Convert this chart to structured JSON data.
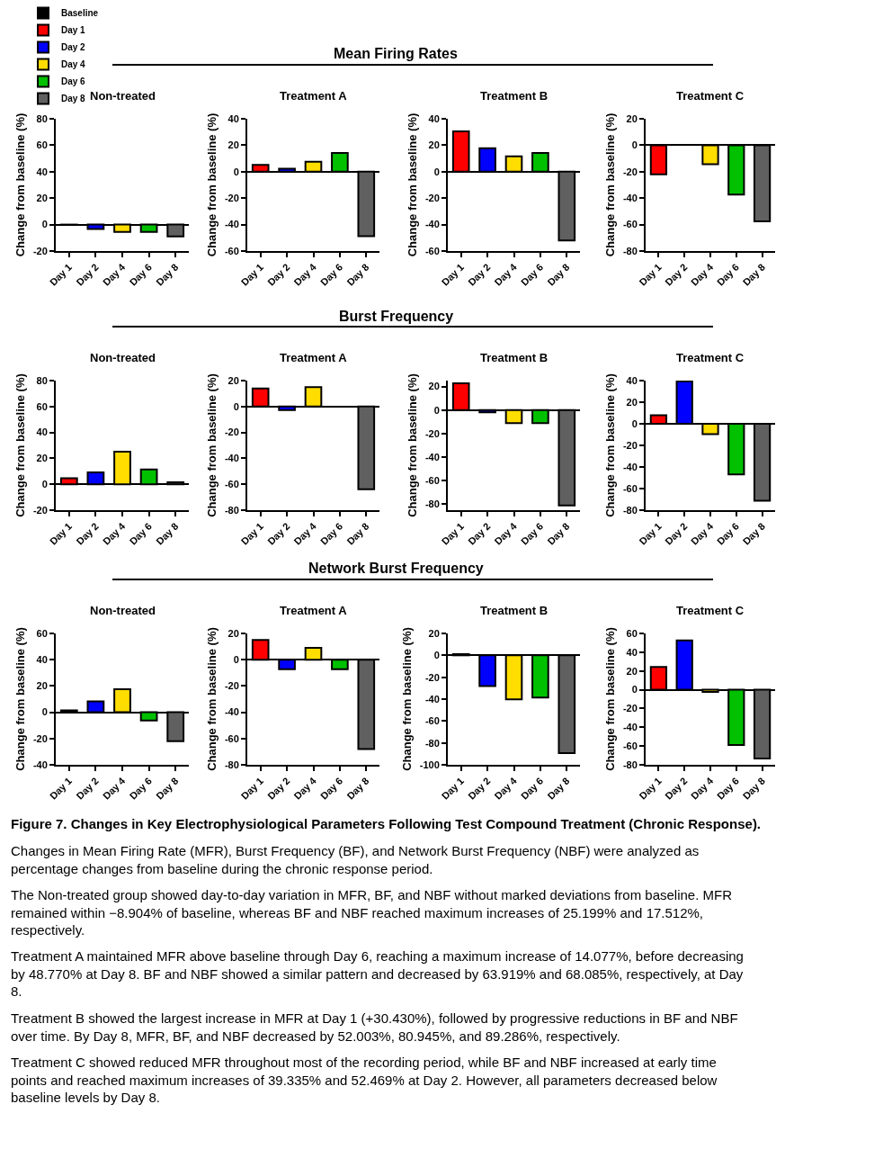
{
  "chart_data": [
    {
      "type": "bar",
      "title": "Non-treated",
      "ylabel": "Change from baseline (%)",
      "categories": [
        "Day 1",
        "Day 2",
        "Day 4",
        "Day 6",
        "Day 8"
      ],
      "legend": "top left",
      "ylim": [
        -20,
        80
      ],
      "yticks": [
        -20,
        0,
        20,
        40,
        60,
        80
      ],
      "annotations": [
        "Mean Firing Rates"
      ],
      "series": [
        {
          "name": "Baseline",
          "color": "#000000",
          "values": [
            null,
            null,
            null,
            null,
            null
          ]
        },
        {
          "name": "Day 1",
          "color": "#ff0000",
          "values": [
            -0.3,
            null,
            null,
            null,
            null
          ]
        },
        {
          "name": "Day 2",
          "color": "#0000ff",
          "values": [
            null,
            -3.4,
            null,
            null,
            null
          ]
        },
        {
          "name": "Day 4",
          "color": "#ffdd00",
          "values": [
            null,
            null,
            -5.5,
            null,
            null
          ]
        },
        {
          "name": "Day 6",
          "color": "#00c000",
          "values": [
            null,
            null,
            null,
            -5.5,
            null
          ]
        },
        {
          "name": "Day 8",
          "color": "#606060",
          "values": [
            null,
            null,
            null,
            null,
            -8.904
          ]
        }
      ]
    },
    {
      "type": "bar",
      "title": "Treatment A",
      "ylabel": "Change from baseline (%)",
      "categories": [
        "Day 1",
        "Day 2",
        "Day 4",
        "Day 6",
        "Day 8"
      ],
      "values": [
        5.2,
        2.3,
        7.5,
        14.077,
        -48.77
      ],
      "colors": [
        "#ff0000",
        "#0000ff",
        "#ffdd00",
        "#00c000",
        "#606060"
      ],
      "ylim": [
        -60,
        40
      ],
      "yticks": [
        -60,
        -40,
        -20,
        0,
        20,
        40
      ]
    },
    {
      "type": "bar",
      "title": "Treatment B",
      "ylabel": "Change from baseline (%)",
      "categories": [
        "Day 1",
        "Day 2",
        "Day 4",
        "Day 6",
        "Day 8"
      ],
      "values": [
        30.43,
        17.7,
        11.6,
        14.1,
        -52.003
      ],
      "colors": [
        "#ff0000",
        "#0000ff",
        "#ffdd00",
        "#00c000",
        "#606060"
      ],
      "ylim": [
        -60,
        40
      ],
      "yticks": [
        -60,
        -40,
        -20,
        0,
        20,
        40
      ]
    },
    {
      "type": "bar",
      "title": "Treatment C",
      "ylabel": "Change from baseline (%)",
      "categories": [
        "Day 1",
        "Day 2",
        "Day 4",
        "Day 6",
        "Day 8"
      ],
      "values": [
        -22,
        null,
        -14.3,
        -37.3,
        -57.5
      ],
      "colors": [
        "#ff0000",
        "#0000ff",
        "#ffdd00",
        "#00c000",
        "#606060"
      ],
      "ylim": [
        -80,
        20
      ],
      "yticks": [
        -80,
        -60,
        -40,
        -20,
        0,
        20
      ]
    },
    {
      "type": "bar",
      "title": "Non-treated",
      "ylabel": "Change from baseline (%)",
      "categories": [
        "Day 1",
        "Day 2",
        "Day 4",
        "Day 6",
        "Day 8"
      ],
      "values": [
        4.6,
        9.2,
        25.199,
        11.5,
        1.6
      ],
      "colors": [
        "#ff0000",
        "#0000ff",
        "#ffdd00",
        "#00c000",
        "#606060"
      ],
      "ylim": [
        -20,
        80
      ],
      "yticks": [
        -20,
        0,
        20,
        40,
        60,
        80
      ],
      "annotations": [
        "Burst Frequency"
      ]
    },
    {
      "type": "bar",
      "title": "Treatment A",
      "ylabel": "Change from baseline (%)",
      "categories": [
        "Day 1",
        "Day 2",
        "Day 4",
        "Day 6",
        "Day 8"
      ],
      "values": [
        14.0,
        -2.8,
        14.9,
        null,
        -63.919
      ],
      "colors": [
        "#ff0000",
        "#0000ff",
        "#ffdd00",
        "#00c000",
        "#606060"
      ],
      "ylim": [
        -80,
        20
      ],
      "yticks": [
        -80,
        -60,
        -40,
        -20,
        0,
        20
      ]
    },
    {
      "type": "bar",
      "title": "Treatment B",
      "ylabel": "Change from baseline (%)",
      "categories": [
        "Day 1",
        "Day 2",
        "Day 4",
        "Day 6",
        "Day 8"
      ],
      "values": [
        22.8,
        -2.0,
        -11.1,
        -11.1,
        -80.945
      ],
      "colors": [
        "#ff0000",
        "#0000ff",
        "#ffdd00",
        "#00c000",
        "#606060"
      ],
      "ylim": [
        -85,
        25
      ],
      "yticks": [
        -80,
        -60,
        -40,
        -20,
        0,
        20
      ]
    },
    {
      "type": "bar",
      "title": "Treatment C",
      "ylabel": "Change from baseline (%)",
      "categories": [
        "Day 1",
        "Day 2",
        "Day 4",
        "Day 6",
        "Day 8"
      ],
      "values": [
        7.9,
        39.335,
        -9.6,
        -46.8,
        -71.3
      ],
      "colors": [
        "#ff0000",
        "#0000ff",
        "#ffdd00",
        "#00c000",
        "#606060"
      ],
      "ylim": [
        -80,
        40
      ],
      "yticks": [
        -80,
        -60,
        -40,
        -20,
        0,
        20,
        40
      ]
    },
    {
      "type": "bar",
      "title": "Non-treated",
      "ylabel": "Change from baseline (%)",
      "categories": [
        "Day 1",
        "Day 2",
        "Day 4",
        "Day 6",
        "Day 8"
      ],
      "values": [
        1.4,
        8.3,
        17.512,
        -6.2,
        -22.1
      ],
      "colors": [
        "#ff0000",
        "#0000ff",
        "#ffdd00",
        "#00c000",
        "#606060"
      ],
      "ylim": [
        -40,
        60
      ],
      "yticks": [
        -40,
        -20,
        0,
        20,
        40,
        60
      ],
      "annotations": [
        "Network Burst Frequency"
      ]
    },
    {
      "type": "bar",
      "title": "Treatment A",
      "ylabel": "Change from baseline (%)",
      "categories": [
        "Day 1",
        "Day 2",
        "Day 4",
        "Day 6",
        "Day 8"
      ],
      "values": [
        15.1,
        -7.2,
        9.1,
        -7.2,
        -68.085
      ],
      "colors": [
        "#ff0000",
        "#0000ff",
        "#ffdd00",
        "#00c000",
        "#606060"
      ],
      "ylim": [
        -80,
        20
      ],
      "yticks": [
        -80,
        -60,
        -40,
        -20,
        0,
        20
      ]
    },
    {
      "type": "bar",
      "title": "Treatment B",
      "ylabel": "Change from baseline (%)",
      "categories": [
        "Day 1",
        "Day 2",
        "Day 4",
        "Day 6",
        "Day 8"
      ],
      "values": [
        1.1,
        -28.1,
        -40.3,
        -38.6,
        -89.286
      ],
      "colors": [
        "#ff0000",
        "#0000ff",
        "#ffdd00",
        "#00c000",
        "#606060"
      ],
      "ylim": [
        -100,
        20
      ],
      "yticks": [
        -100,
        -80,
        -60,
        -40,
        -20,
        0,
        20
      ]
    },
    {
      "type": "bar",
      "title": "Treatment C",
      "ylabel": "Change from baseline (%)",
      "categories": [
        "Day 1",
        "Day 2",
        "Day 4",
        "Day 6",
        "Day 8"
      ],
      "values": [
        24.2,
        52.469,
        -2.3,
        -59.0,
        -73.2
      ],
      "colors": [
        "#ff0000",
        "#0000ff",
        "#ffdd00",
        "#00c000",
        "#606060"
      ],
      "ylim": [
        -80,
        60
      ],
      "yticks": [
        -80,
        -60,
        -40,
        -20,
        0,
        20,
        40,
        60
      ],
      "annotations": [
        "Figure 7. Changes in Key Electrophysiological Parameters Following Test Compound Treatment (Chronic Response).",
        "Changes in Mean Firing Rate (MFR), Burst Frequency (BF), and Network Burst Frequency (NBF) were analyzed as percentage changes from baseline during the chronic response period.",
        "The Non-treated group showed day-to-day variation in MFR, BF, and NBF without marked deviations from baseline. MFR remained within −8.904% of baseline, whereas BF and NBF reached maximum increases of 25.199% and 17.512%, respectively.",
        "Treatment A maintained MFR above baseline through Day 6, reaching a maximum increase of 14.077%, before decreasing by 48.770% at Day 8. BF and NBF showed a similar pattern and decreased by 63.919% and 68.085%, respectively, at Day 8.",
        "Treatment B showed the largest increase in MFR at Day 1 (+30.430%), followed by progressive reductions in BF and NBF over time. By Day 8, MFR, BF, and NBF decreased by 52.003%, 80.945%, and 89.286%, respectively.",
        "Treatment C showed reduced MFR throughout most of the recording period, while BF and NBF increased at early time points and reached maximum increases of 39.335% and 52.469% at Day 2. However, all parameters decreased below baseline levels by Day 8."
      ]
    }
  ]
}
